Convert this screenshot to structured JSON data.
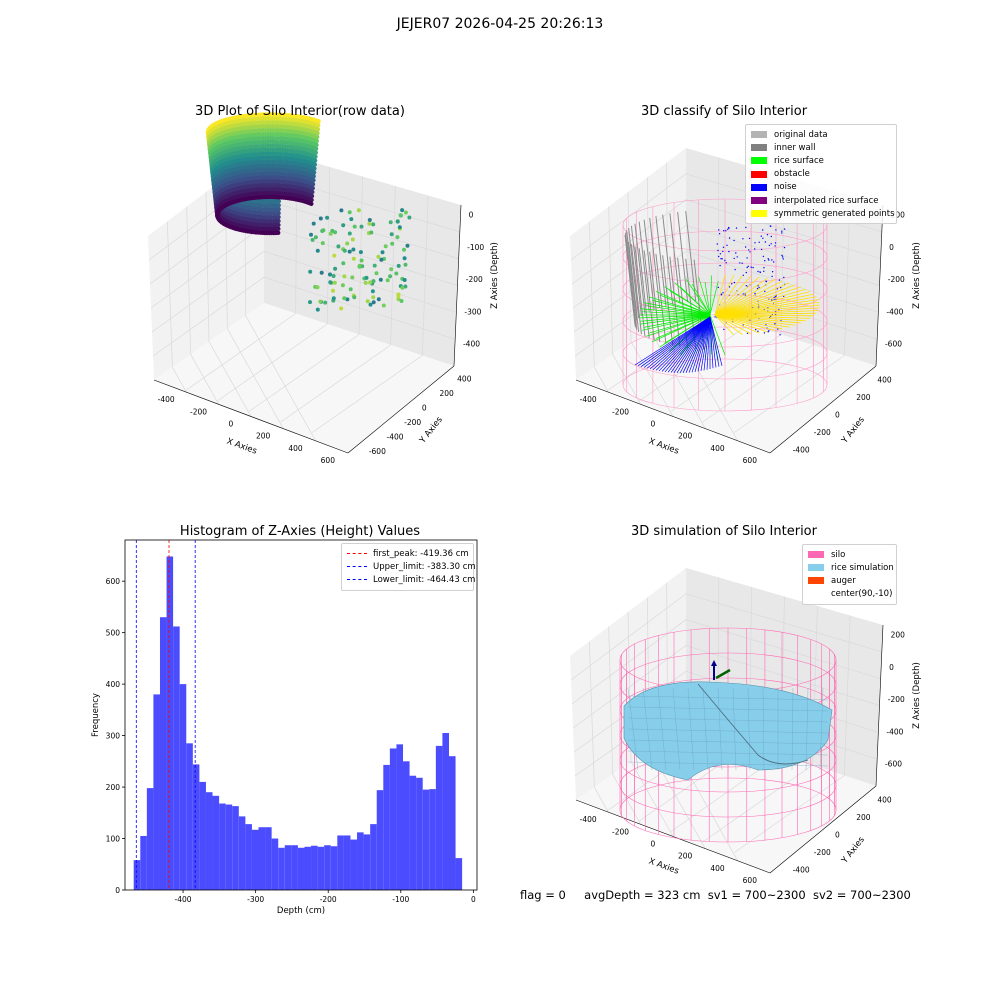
{
  "suptitle": "JEJER07 2026-04-25 20:26:13",
  "status": {
    "flag": "flag = 0",
    "avgDepth": "avgDepth = 323 cm",
    "sv1": "sv1 = 700~2300",
    "sv2": "sv2 = 700~2300"
  },
  "panels": {
    "raw": {
      "title": "3D Plot of Silo Interior(row data)",
      "xlabel": "X Axies",
      "ylabel": "Y Axies",
      "zlabel": "Z Axies (Depth)",
      "xticks": [
        "-400",
        "-200",
        "0",
        "200",
        "400",
        "600"
      ],
      "yticks": [
        "-600",
        "-400",
        "-200",
        "0",
        "200",
        "400"
      ],
      "zticks": [
        "0",
        "-100",
        "-200",
        "-300",
        "-400"
      ]
    },
    "classify": {
      "title": "3D classify of Silo Interior",
      "xlabel": "X Axies",
      "ylabel": "Y Axies",
      "zlabel": "Z Axies (Depth)",
      "xticks": [
        "-400",
        "-200",
        "0",
        "200",
        "400",
        "600"
      ],
      "yticks": [
        "-400",
        "-200",
        "0",
        "200",
        "400"
      ],
      "zticks": [
        "200",
        "0",
        "-200",
        "-400",
        "-600"
      ],
      "legend": [
        {
          "label": "original data",
          "color": "#b3b3b3"
        },
        {
          "label": "inner wall",
          "color": "#808080"
        },
        {
          "label": "rice surface",
          "color": "#00ff00"
        },
        {
          "label": "obstacle",
          "color": "#ff0000"
        },
        {
          "label": "noise",
          "color": "#0000ff"
        },
        {
          "label": "interpolated rice surface",
          "color": "#800080"
        },
        {
          "label": "symmetric generated points",
          "color": "#ffff00"
        }
      ]
    },
    "simulation": {
      "title": "3D simulation of Silo Interior",
      "xlabel": "X Axies",
      "ylabel": "Y Axies",
      "zlabel": "Z Axies (Depth)",
      "xticks": [
        "-400",
        "-200",
        "0",
        "200",
        "400",
        "600"
      ],
      "yticks": [
        "-400",
        "-200",
        "0",
        "200",
        "400"
      ],
      "zticks": [
        "200",
        "0",
        "-200",
        "-400",
        "-600"
      ],
      "legend": [
        {
          "label": "silo",
          "color": "#ff69b4"
        },
        {
          "label": "rice simulation",
          "color": "#87ceeb"
        },
        {
          "label": "auger",
          "color": "#ff4500"
        },
        {
          "label": "center(90,-10)",
          "color": ""
        }
      ]
    }
  },
  "chart_data": {
    "type": "bar",
    "title": "Histogram of Z-Axies (Height) Values",
    "xlabel": "Depth (cm)",
    "ylabel": "Frequency",
    "xlim": [
      -480,
      5
    ],
    "ylim": [
      0,
      680
    ],
    "xticks": [
      -400,
      -300,
      -200,
      -100,
      0
    ],
    "yticks": [
      0,
      100,
      200,
      300,
      400,
      500,
      600
    ],
    "bar_color": "#4c4cff",
    "bins": {
      "start": -468,
      "width": 9.05
    },
    "values": [
      58,
      105,
      198,
      380,
      530,
      648,
      512,
      400,
      285,
      244,
      210,
      190,
      183,
      168,
      166,
      163,
      143,
      128,
      117,
      122,
      122,
      100,
      82,
      87,
      87,
      82,
      84,
      86,
      84,
      87,
      85,
      106,
      106,
      98,
      112,
      108,
      128,
      194,
      243,
      275,
      283,
      250,
      222,
      218,
      195,
      196,
      280,
      305,
      260,
      62
    ],
    "vlines": [
      {
        "label": "first_peak: -419.36 cm",
        "x": -419.36,
        "color": "#ff0000"
      },
      {
        "label": "Upper_limit: -383.30 cm",
        "x": -383.3,
        "color": "#0000ff"
      },
      {
        "label": "Lower_limit: -464.43 cm",
        "x": -464.43,
        "color": "#0000ff"
      }
    ],
    "legend_position": "top-right"
  }
}
